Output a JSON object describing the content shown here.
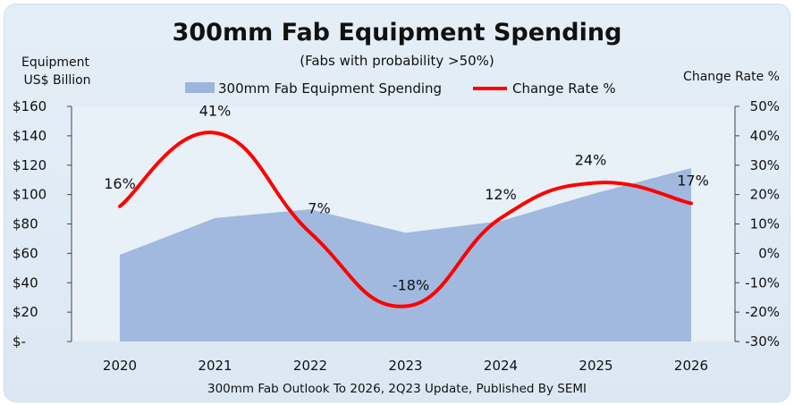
{
  "chart_data": {
    "type": "area",
    "title": "300mm Fab Equipment Spending",
    "subtitle": "(Fabs with probability >50%)",
    "ylabel_left": [
      "Equipment",
      "US$ Billion"
    ],
    "ylabel_right": "Change Rate %",
    "categories": [
      "2020",
      "2021",
      "2022",
      "2023",
      "2024",
      "2025",
      "2026"
    ],
    "y_left_ticks": [
      "$160",
      "$140",
      "$120",
      "$100",
      "$80",
      "$60",
      "$40",
      "$20",
      "$-"
    ],
    "y_right_ticks": [
      "50%",
      "40%",
      "30%",
      "20%",
      "10%",
      "0%",
      "-10%",
      "-20%",
      "-30%"
    ],
    "ylim_left": [
      0,
      160
    ],
    "ylim_right": [
      -30,
      50
    ],
    "series": [
      {
        "name": "300mm Fab Equipment Spending",
        "kind": "area",
        "axis": "left",
        "color": "#9db5dc",
        "values": [
          59,
          84,
          90,
          74,
          82,
          101,
          118
        ]
      },
      {
        "name": "Change Rate %",
        "kind": "line",
        "axis": "right",
        "color": "#ff0000",
        "values": [
          16,
          41,
          7,
          -18,
          12,
          24,
          17
        ],
        "labels": [
          "16%",
          "41%",
          "7%",
          "-18%",
          "12%",
          "24%",
          "17%"
        ]
      }
    ],
    "source_note": "300mm Fab Outlook To 2026, 2Q23 Update, Published By SEMI",
    "grid": false,
    "legend_position": "top"
  }
}
